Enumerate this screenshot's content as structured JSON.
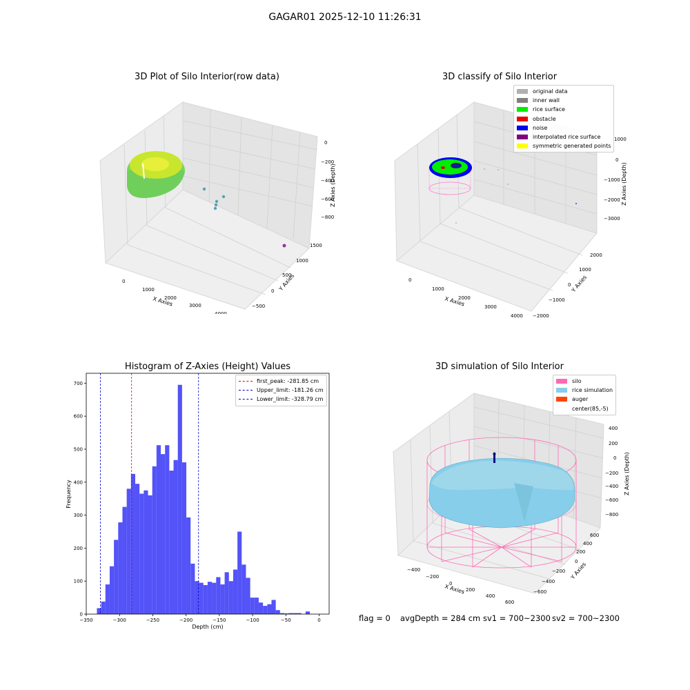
{
  "figure": {
    "title": "GAGAR01 2025-12-10 11:26:31",
    "status": {
      "flag": "flag = 0",
      "avg_depth": "avgDepth = 284 cm",
      "sv1": "sv1 = 700~2300",
      "sv2": "sv2 = 700~2300"
    }
  },
  "chart_data": [
    {
      "type": "scatter",
      "title": "3D Plot of Silo Interior(row data)",
      "xlabel": "X Axies",
      "ylabel": "Y Axies",
      "zlabel": "Z Axies (Depth)",
      "x_ticks": [
        "0",
        "1000",
        "2000",
        "3000",
        "4000"
      ],
      "y_ticks": [
        "−500",
        "0",
        "500",
        "1000",
        "1500"
      ],
      "z_ticks": [
        "0",
        "−200",
        "−400",
        "−600",
        "−800"
      ],
      "colors": {
        "surface_light": "#d8ea2a",
        "surface_dark": "#6fcf5a",
        "points": "#5aa0b4",
        "outlier": "#8a3a9a"
      }
    },
    {
      "type": "scatter",
      "title": "3D classify of Silo Interior",
      "xlabel": "X Axies",
      "ylabel": "Y Axies",
      "zlabel": "Z Axies (Depth)",
      "x_ticks": [
        "0",
        "1000",
        "2000",
        "3000",
        "4000"
      ],
      "y_ticks": [
        "−2000",
        "−1000",
        "0",
        "1000",
        "2000"
      ],
      "z_ticks": [
        "1000",
        "0",
        "−1000",
        "−2000",
        "−3000"
      ],
      "legend": [
        {
          "label": "original data",
          "color": "#b0b0b0"
        },
        {
          "label": "inner wall",
          "color": "#808080"
        },
        {
          "label": "rice surface",
          "color": "#00ee00"
        },
        {
          "label": "obstacle",
          "color": "#ee0000"
        },
        {
          "label": "noise",
          "color": "#0000ee"
        },
        {
          "label": "interpolated rice surface",
          "color": "#800080"
        },
        {
          "label": "symmetric generated points",
          "color": "#ffff00"
        }
      ]
    },
    {
      "type": "bar",
      "title": "Histogram of Z-Axies (Height) Values",
      "xlabel": "Depth (cm)",
      "ylabel": "Frequency",
      "xlim": [
        -350,
        15
      ],
      "ylim": [
        0,
        730
      ],
      "x_ticks": [
        "−350",
        "−300",
        "−250",
        "−200",
        "−150",
        "−100",
        "−50",
        "0"
      ],
      "x_tick_values": [
        -350,
        -300,
        -250,
        -200,
        -150,
        -100,
        -50,
        0
      ],
      "y_ticks": [
        "0",
        "100",
        "200",
        "300",
        "400",
        "500",
        "600",
        "700"
      ],
      "y_tick_values": [
        0,
        100,
        200,
        300,
        400,
        500,
        600,
        700
      ],
      "bar_color": "#4a4af8",
      "bin_start": -334,
      "bin_width": 6.4,
      "values": [
        18,
        38,
        90,
        145,
        225,
        278,
        325,
        380,
        425,
        395,
        365,
        375,
        360,
        448,
        512,
        485,
        512,
        435,
        467,
        695,
        460,
        293,
        153,
        100,
        95,
        88,
        98,
        95,
        112,
        90,
        127,
        100,
        135,
        250,
        150,
        110,
        50,
        50,
        35,
        25,
        30,
        43,
        12,
        3,
        2,
        3,
        3,
        3,
        0,
        8
      ],
      "reference_lines": [
        {
          "label": "first_peak: -281.85 cm",
          "x": -281.85,
          "color": "#dd0000"
        },
        {
          "label": "Upper_limit: -181.26 cm",
          "x": -181.26,
          "color": "#0000cc"
        },
        {
          "label": "Lower_limit: -328.79 cm",
          "x": -328.79,
          "color": "#0000cc"
        }
      ]
    },
    {
      "type": "scatter",
      "title": "3D simulation of Silo Interior",
      "xlabel": "X Axies",
      "ylabel": "Y Axies",
      "zlabel": "Z Axies (Depth)",
      "x_ticks": [
        "−400",
        "−200",
        "0",
        "200",
        "400",
        "600"
      ],
      "y_ticks": [
        "−600",
        "−400",
        "−200",
        "0",
        "200",
        "400",
        "600"
      ],
      "z_ticks": [
        "400",
        "200",
        "0",
        "−200",
        "−400",
        "−600",
        "−800"
      ],
      "legend": [
        {
          "label": "silo",
          "color": "#ff69b4"
        },
        {
          "label": "rice simulation",
          "color": "#87ceeb"
        },
        {
          "label": "auger",
          "color": "#ff4500"
        },
        {
          "label": "center(85,-5)",
          "color": "#ffffff"
        }
      ]
    }
  ]
}
